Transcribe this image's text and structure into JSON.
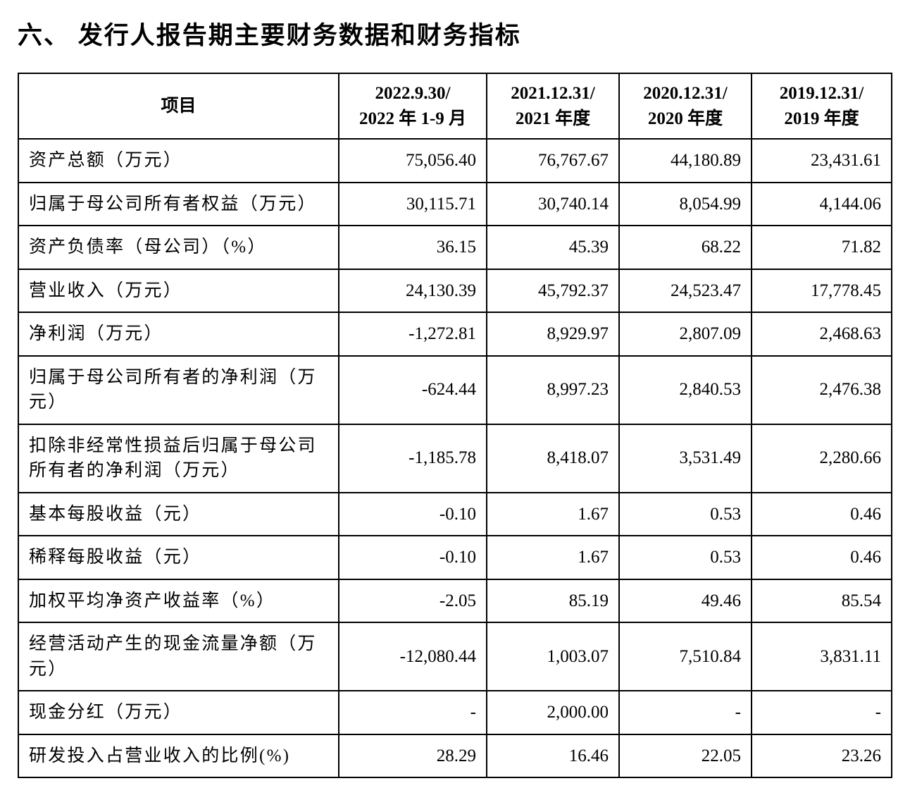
{
  "page": {
    "title": "六、 发行人报告期主要财务数据和财务指标"
  },
  "table": {
    "headers": {
      "item": "项目",
      "periods": [
        {
          "line1": "2022.9.30/",
          "line2": "2022 年 1-9 月"
        },
        {
          "line1": "2021.12.31/",
          "line2": "2021 年度"
        },
        {
          "line1": "2020.12.31/",
          "line2": "2020 年度"
        },
        {
          "line1": "2019.12.31/",
          "line2": "2019 年度"
        }
      ]
    },
    "rows": [
      {
        "label": "资产总额（万元）",
        "values": [
          "75,056.40",
          "76,767.67",
          "44,180.89",
          "23,431.61"
        ]
      },
      {
        "label": "归属于母公司所有者权益（万元）",
        "values": [
          "30,115.71",
          "30,740.14",
          "8,054.99",
          "4,144.06"
        ]
      },
      {
        "label": "资产负债率（母公司）（%）",
        "values": [
          "36.15",
          "45.39",
          "68.22",
          "71.82"
        ]
      },
      {
        "label": "营业收入（万元）",
        "values": [
          "24,130.39",
          "45,792.37",
          "24,523.47",
          "17,778.45"
        ]
      },
      {
        "label": "净利润（万元）",
        "values": [
          "-1,272.81",
          "8,929.97",
          "2,807.09",
          "2,468.63"
        ]
      },
      {
        "label": "归属于母公司所有者的净利润（万元）",
        "values": [
          "-624.44",
          "8,997.23",
          "2,840.53",
          "2,476.38"
        ]
      },
      {
        "label": "扣除非经常性损益后归属于母公司所有者的净利润（万元）",
        "values": [
          "-1,185.78",
          "8,418.07",
          "3,531.49",
          "2,280.66"
        ]
      },
      {
        "label": "基本每股收益（元）",
        "values": [
          "-0.10",
          "1.67",
          "0.53",
          "0.46"
        ]
      },
      {
        "label": "稀释每股收益（元）",
        "values": [
          "-0.10",
          "1.67",
          "0.53",
          "0.46"
        ]
      },
      {
        "label": "加权平均净资产收益率（%）",
        "values": [
          "-2.05",
          "85.19",
          "49.46",
          "85.54"
        ]
      },
      {
        "label": "经营活动产生的现金流量净额（万元）",
        "values": [
          "-12,080.44",
          "1,003.07",
          "7,510.84",
          "3,831.11"
        ]
      },
      {
        "label": "现金分红（万元）",
        "values": [
          "-",
          "2,000.00",
          "-",
          "-"
        ]
      },
      {
        "label": "研发投入占营业收入的比例(%)",
        "values": [
          "28.29",
          "16.46",
          "22.05",
          "23.26"
        ]
      }
    ]
  }
}
